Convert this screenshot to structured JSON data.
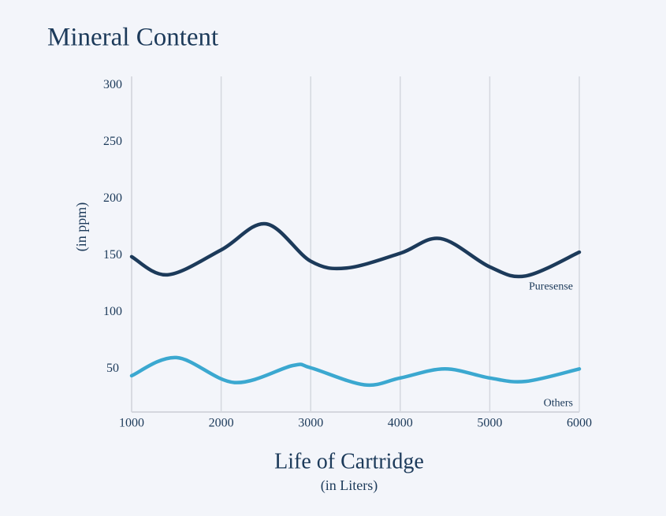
{
  "chart_data": {
    "type": "line",
    "title": "Mineral Content",
    "x_label": "Life of Cartridge",
    "x_sublabel": "(in Liters)",
    "y_label": "(in ppm)",
    "xlim": [
      1000,
      6000
    ],
    "xticks": [
      1000,
      2000,
      3000,
      4000,
      5000,
      6000
    ],
    "ylim": [
      12,
      308
    ],
    "yticks": [
      50,
      100,
      150,
      200,
      250,
      300
    ],
    "grid": true,
    "series": [
      {
        "name": "Puresense",
        "color": "#1c3a5a",
        "x": [
          1000,
          1400,
          2000,
          2500,
          3000,
          3400,
          4000,
          4450,
          5000,
          5400,
          6000
        ],
        "values": [
          149,
          133,
          155,
          178,
          145,
          139,
          152,
          165,
          140,
          132,
          153
        ]
      },
      {
        "name": "Others",
        "color": "#3ba8d0",
        "x": [
          1000,
          1500,
          2150,
          2800,
          3000,
          3600,
          4000,
          4500,
          5000,
          5400,
          6000
        ],
        "values": [
          44,
          60,
          38,
          53,
          51,
          36,
          42,
          50,
          42,
          39,
          50
        ]
      }
    ]
  }
}
